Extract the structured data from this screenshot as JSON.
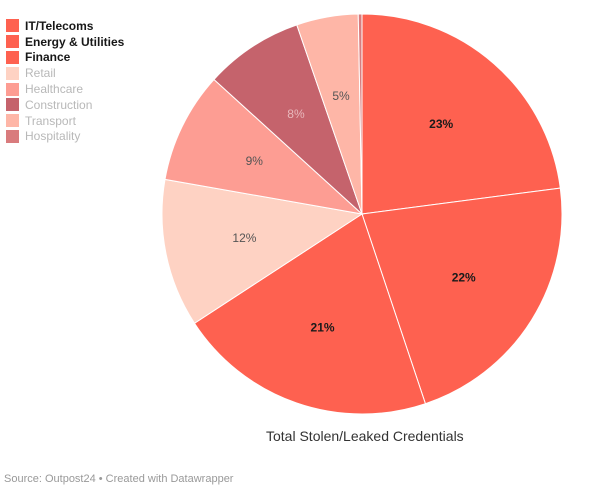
{
  "chart_data": {
    "type": "pie",
    "title": "Total Stolen/Leaked Credentials",
    "legend_position": "top-left",
    "slices": [
      {
        "label": "IT/Telecoms",
        "value": 23,
        "data_label": "23%",
        "color": "#fe6150",
        "highlight": true,
        "label_color": "#1a1a1a"
      },
      {
        "label": "Energy & Utilities",
        "value": 22,
        "data_label": "22%",
        "color": "#fe6150",
        "highlight": true,
        "label_color": "#1a1a1a"
      },
      {
        "label": "Finance",
        "value": 21,
        "data_label": "21%",
        "color": "#fe6150",
        "highlight": true,
        "label_color": "#1a1a1a"
      },
      {
        "label": "Retail",
        "value": 12,
        "data_label": "12%",
        "color": "#fed2c3",
        "highlight": false,
        "label_color": "#555555"
      },
      {
        "label": "Healthcare",
        "value": 9,
        "data_label": "9%",
        "color": "#fd9d93",
        "highlight": false,
        "label_color": "#555555"
      },
      {
        "label": "Construction",
        "value": 8,
        "data_label": "8%",
        "color": "#c5636c",
        "highlight": false,
        "label_color": "#e8b8bc"
      },
      {
        "label": "Transport",
        "value": 5,
        "data_label": "5%",
        "color": "#feb6a7",
        "highlight": false,
        "label_color": "#555555"
      },
      {
        "label": "Hospitality",
        "value": 0.3,
        "data_label": "",
        "color": "#d97b7d",
        "highlight": false,
        "label_color": "#555555"
      }
    ]
  },
  "footer": {
    "source": "Source: Outpost24 • Created with Datawrapper"
  }
}
